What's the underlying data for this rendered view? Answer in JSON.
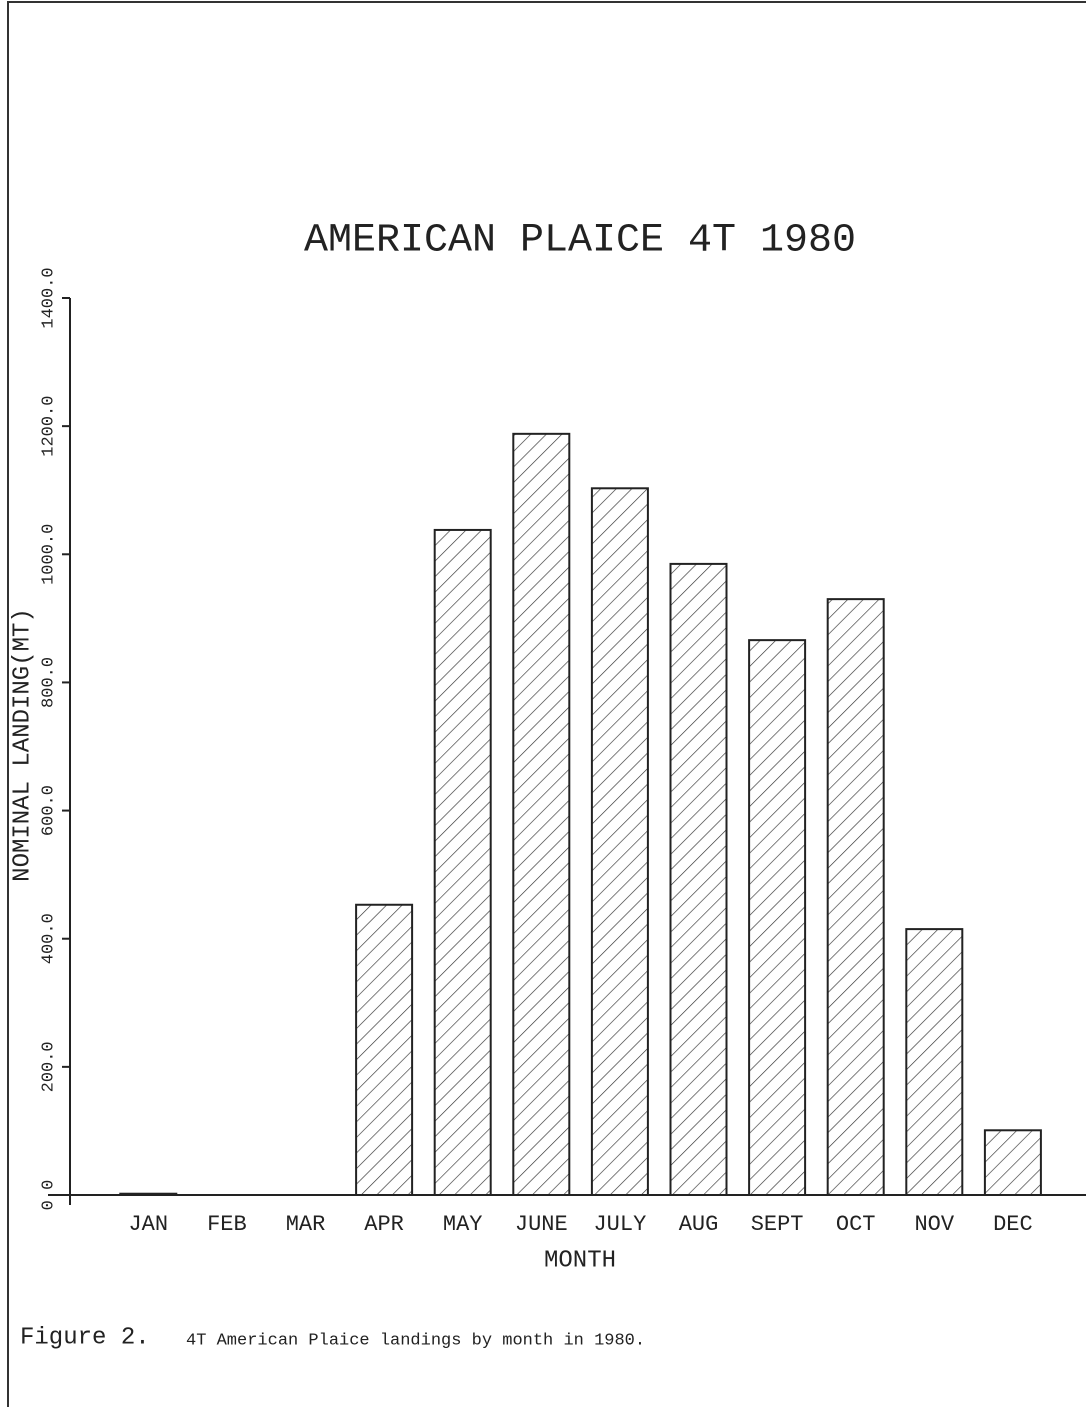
{
  "chart_data": {
    "type": "bar",
    "title": "AMERICAN PLAICE 4T 1980",
    "x_label": "MONTH",
    "y_label": "NOMINAL LANDING(MT)",
    "categories": [
      "JAN",
      "FEB",
      "MAR",
      "APR",
      "MAY",
      "JUNE",
      "JULY",
      "AUG",
      "SEPT",
      "OCT",
      "NOV",
      "DEC"
    ],
    "values": [
      2,
      0,
      0,
      453,
      1038,
      1188,
      1103,
      985,
      866,
      930,
      415,
      101
    ],
    "color": "#222222",
    "ylim": [
      0,
      1400
    ],
    "yticks": [
      {
        "value": 0,
        "label": "0.0"
      },
      {
        "value": 200,
        "label": "200.0"
      },
      {
        "value": 400,
        "label": "400.0"
      },
      {
        "value": 600,
        "label": "600.0"
      },
      {
        "value": 800,
        "label": "800.0"
      },
      {
        "value": 1000,
        "label": "1000.0"
      },
      {
        "value": 1200,
        "label": "1200.0"
      },
      {
        "value": 1400,
        "label": "1400.0"
      }
    ],
    "grid": false,
    "caption": {
      "label": "Figure 2.",
      "text": "4T American Plaice landings by month in 1980."
    }
  }
}
